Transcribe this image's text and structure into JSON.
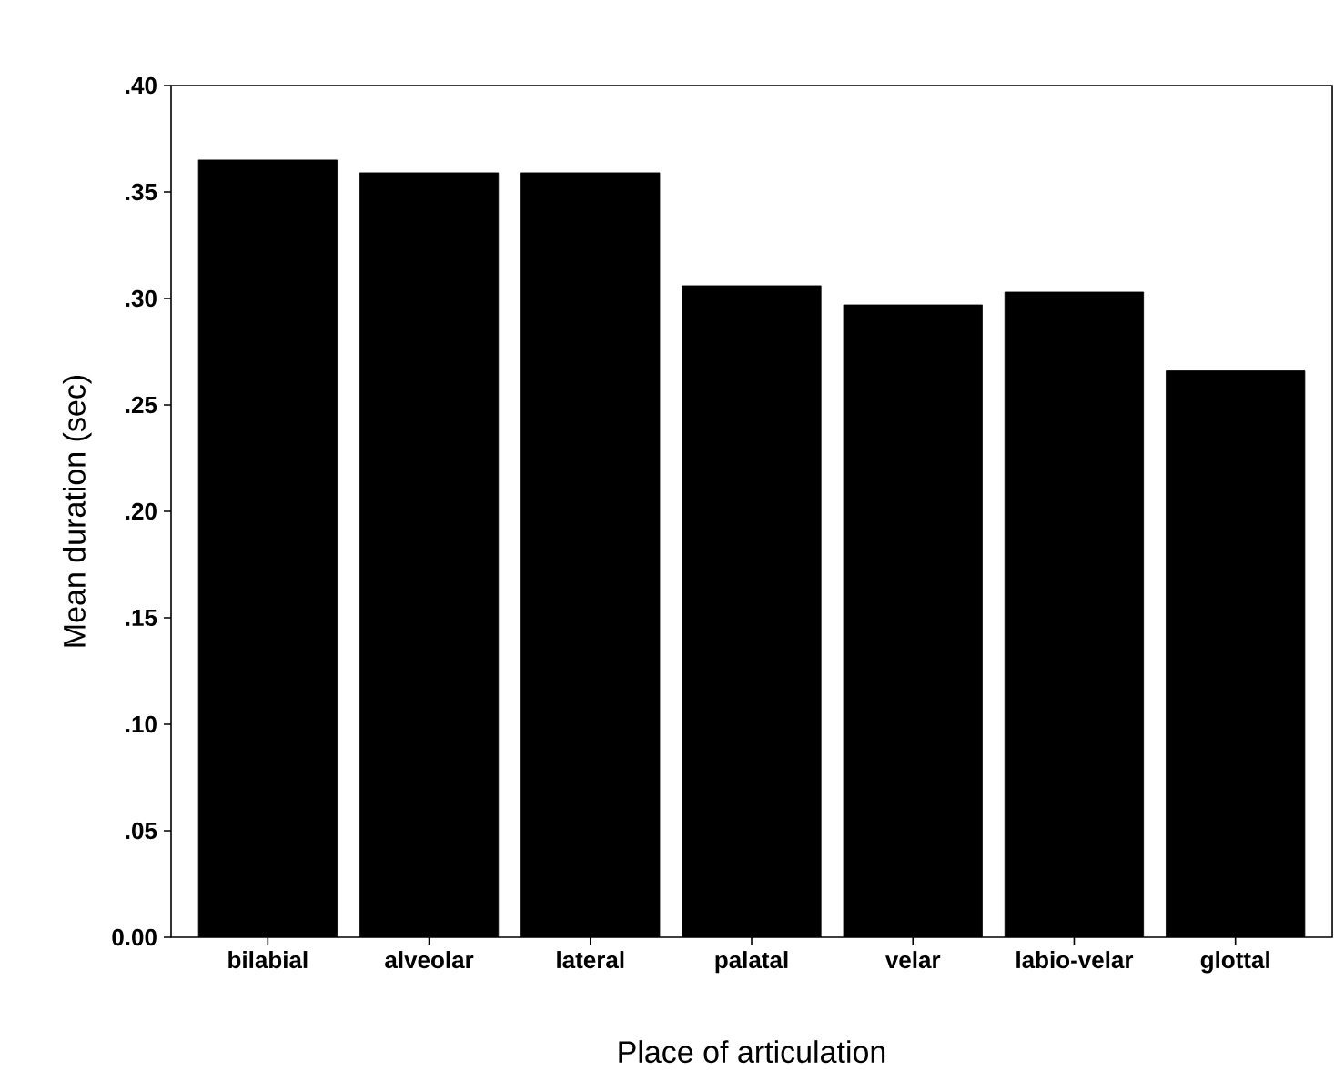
{
  "chart_data": {
    "type": "bar",
    "xlabel": "Place of articulation",
    "ylabel": "Mean duration (sec)",
    "categories": [
      "bilabial",
      "alveolar",
      "lateral",
      "palatal",
      "velar",
      "labio-velar",
      "glottal"
    ],
    "values": [
      0.365,
      0.359,
      0.359,
      0.306,
      0.297,
      0.303,
      0.266
    ],
    "color": "#000000",
    "ylim": [
      0,
      0.4
    ],
    "yticks": [
      {
        "value": 0,
        "label": "0.00"
      },
      {
        "value": 0.05,
        "label": ".05"
      },
      {
        "value": 0.1,
        "label": ".10"
      },
      {
        "value": 0.15,
        "label": ".15"
      },
      {
        "value": 0.2,
        "label": ".20"
      },
      {
        "value": 0.25,
        "label": ".25"
      },
      {
        "value": 0.3,
        "label": ".30"
      },
      {
        "value": 0.35,
        "label": ".35"
      },
      {
        "value": 0.4,
        "label": ".40"
      }
    ],
    "grid": false
  }
}
